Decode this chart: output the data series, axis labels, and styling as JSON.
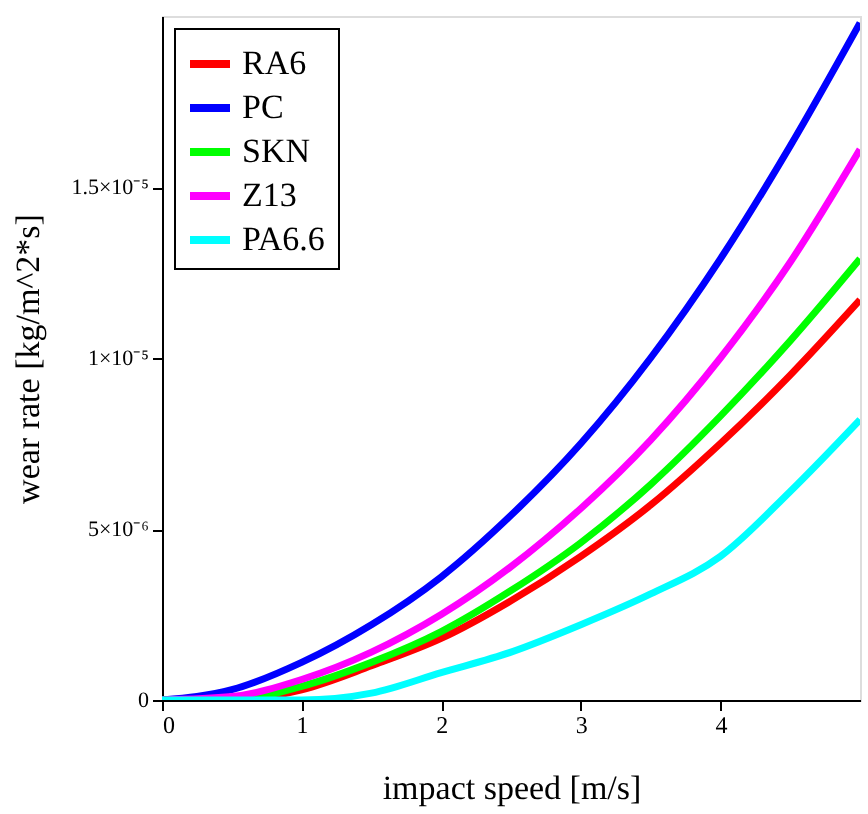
{
  "chart_data": {
    "type": "line",
    "xlabel": "impact speed [m/s]",
    "ylabel": "wear rate [kg/m^2*s]",
    "x": [
      0,
      0.5,
      1,
      1.5,
      2,
      2.5,
      3,
      3.5,
      4,
      4.5,
      5
    ],
    "series": [
      {
        "name": "RA6",
        "color": "#ff0000",
        "values": [
          0,
          0,
          3e-07,
          1e-06,
          1.8e-06,
          2.9e-06,
          4.2e-06,
          5.7e-06,
          7.5e-06,
          9.5e-06,
          1.17e-05
        ]
      },
      {
        "name": "PC",
        "color": "#0000ff",
        "values": [
          0,
          3e-07,
          1.1e-06,
          2.2e-06,
          3.6e-06,
          5.4e-06,
          7.5e-06,
          1e-05,
          1.29e-05,
          1.62e-05,
          1.98e-05
        ]
      },
      {
        "name": "SKN",
        "color": "#00ff00",
        "values": [
          0,
          0,
          4e-07,
          1.1e-06,
          2e-06,
          3.2e-06,
          4.6e-06,
          6.3e-06,
          8.3e-06,
          1.05e-05,
          1.29e-05
        ]
      },
      {
        "name": "Z13",
        "color": "#ff00ff",
        "values": [
          0,
          1e-07,
          6e-07,
          1.4e-06,
          2.5e-06,
          3.9e-06,
          5.6e-06,
          7.6e-06,
          1e-05,
          1.28e-05,
          1.61e-05
        ]
      },
      {
        "name": "PA6.6",
        "color": "#00ffff",
        "values": [
          0,
          0,
          0,
          2e-07,
          8e-07,
          1.4e-06,
          2.2e-06,
          3.1e-06,
          4.2e-06,
          6.1e-06,
          8.2e-06
        ]
      }
    ],
    "xlim": [
      0,
      5
    ],
    "xticks": [
      0,
      1,
      2,
      3,
      4
    ],
    "ylim": [
      0,
      2e-05
    ],
    "yticks": [
      0,
      {
        "value": 5e-06,
        "label": "5×10⁻⁶"
      },
      {
        "value": 1e-05,
        "label": "1×10⁻⁵"
      },
      {
        "value": 1.5e-05,
        "label": "1.5×10⁻⁵"
      }
    ],
    "grid": false,
    "legend": "top left",
    "marker": "none",
    "line_style": "solid"
  }
}
